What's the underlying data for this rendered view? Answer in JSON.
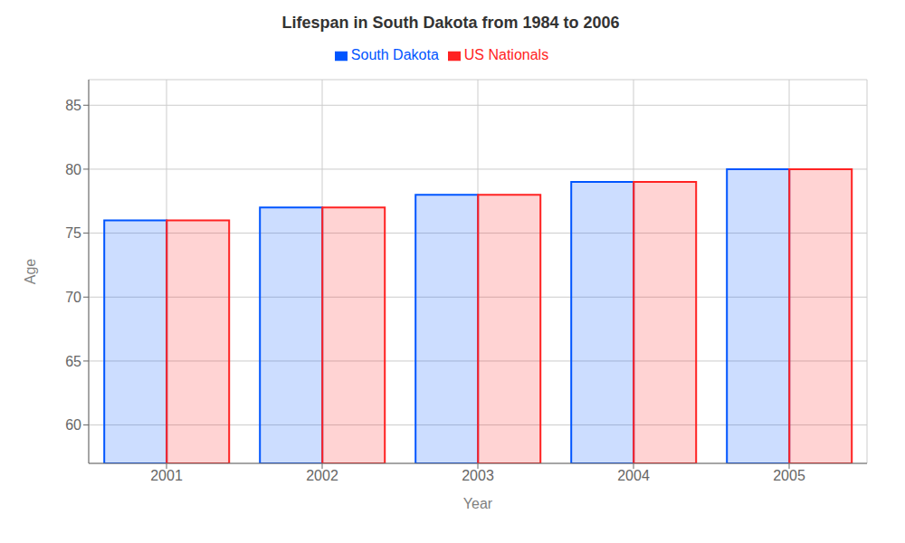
{
  "chart_data": {
    "type": "bar",
    "title": "Lifespan in South Dakota from 1984 to 2006",
    "xlabel": "Year",
    "ylabel": "Age",
    "categories": [
      "2001",
      "2002",
      "2003",
      "2004",
      "2005"
    ],
    "series": [
      {
        "name": "South Dakota",
        "color": "#0055ff",
        "values": [
          76,
          77,
          78,
          79,
          80
        ]
      },
      {
        "name": "US Nationals",
        "color": "#ff2222",
        "values": [
          76,
          77,
          78,
          79,
          80
        ]
      }
    ],
    "ylim": [
      57,
      87
    ],
    "yticks": [
      60,
      65,
      70,
      75,
      80,
      85
    ],
    "grid": true,
    "legend": "top"
  }
}
